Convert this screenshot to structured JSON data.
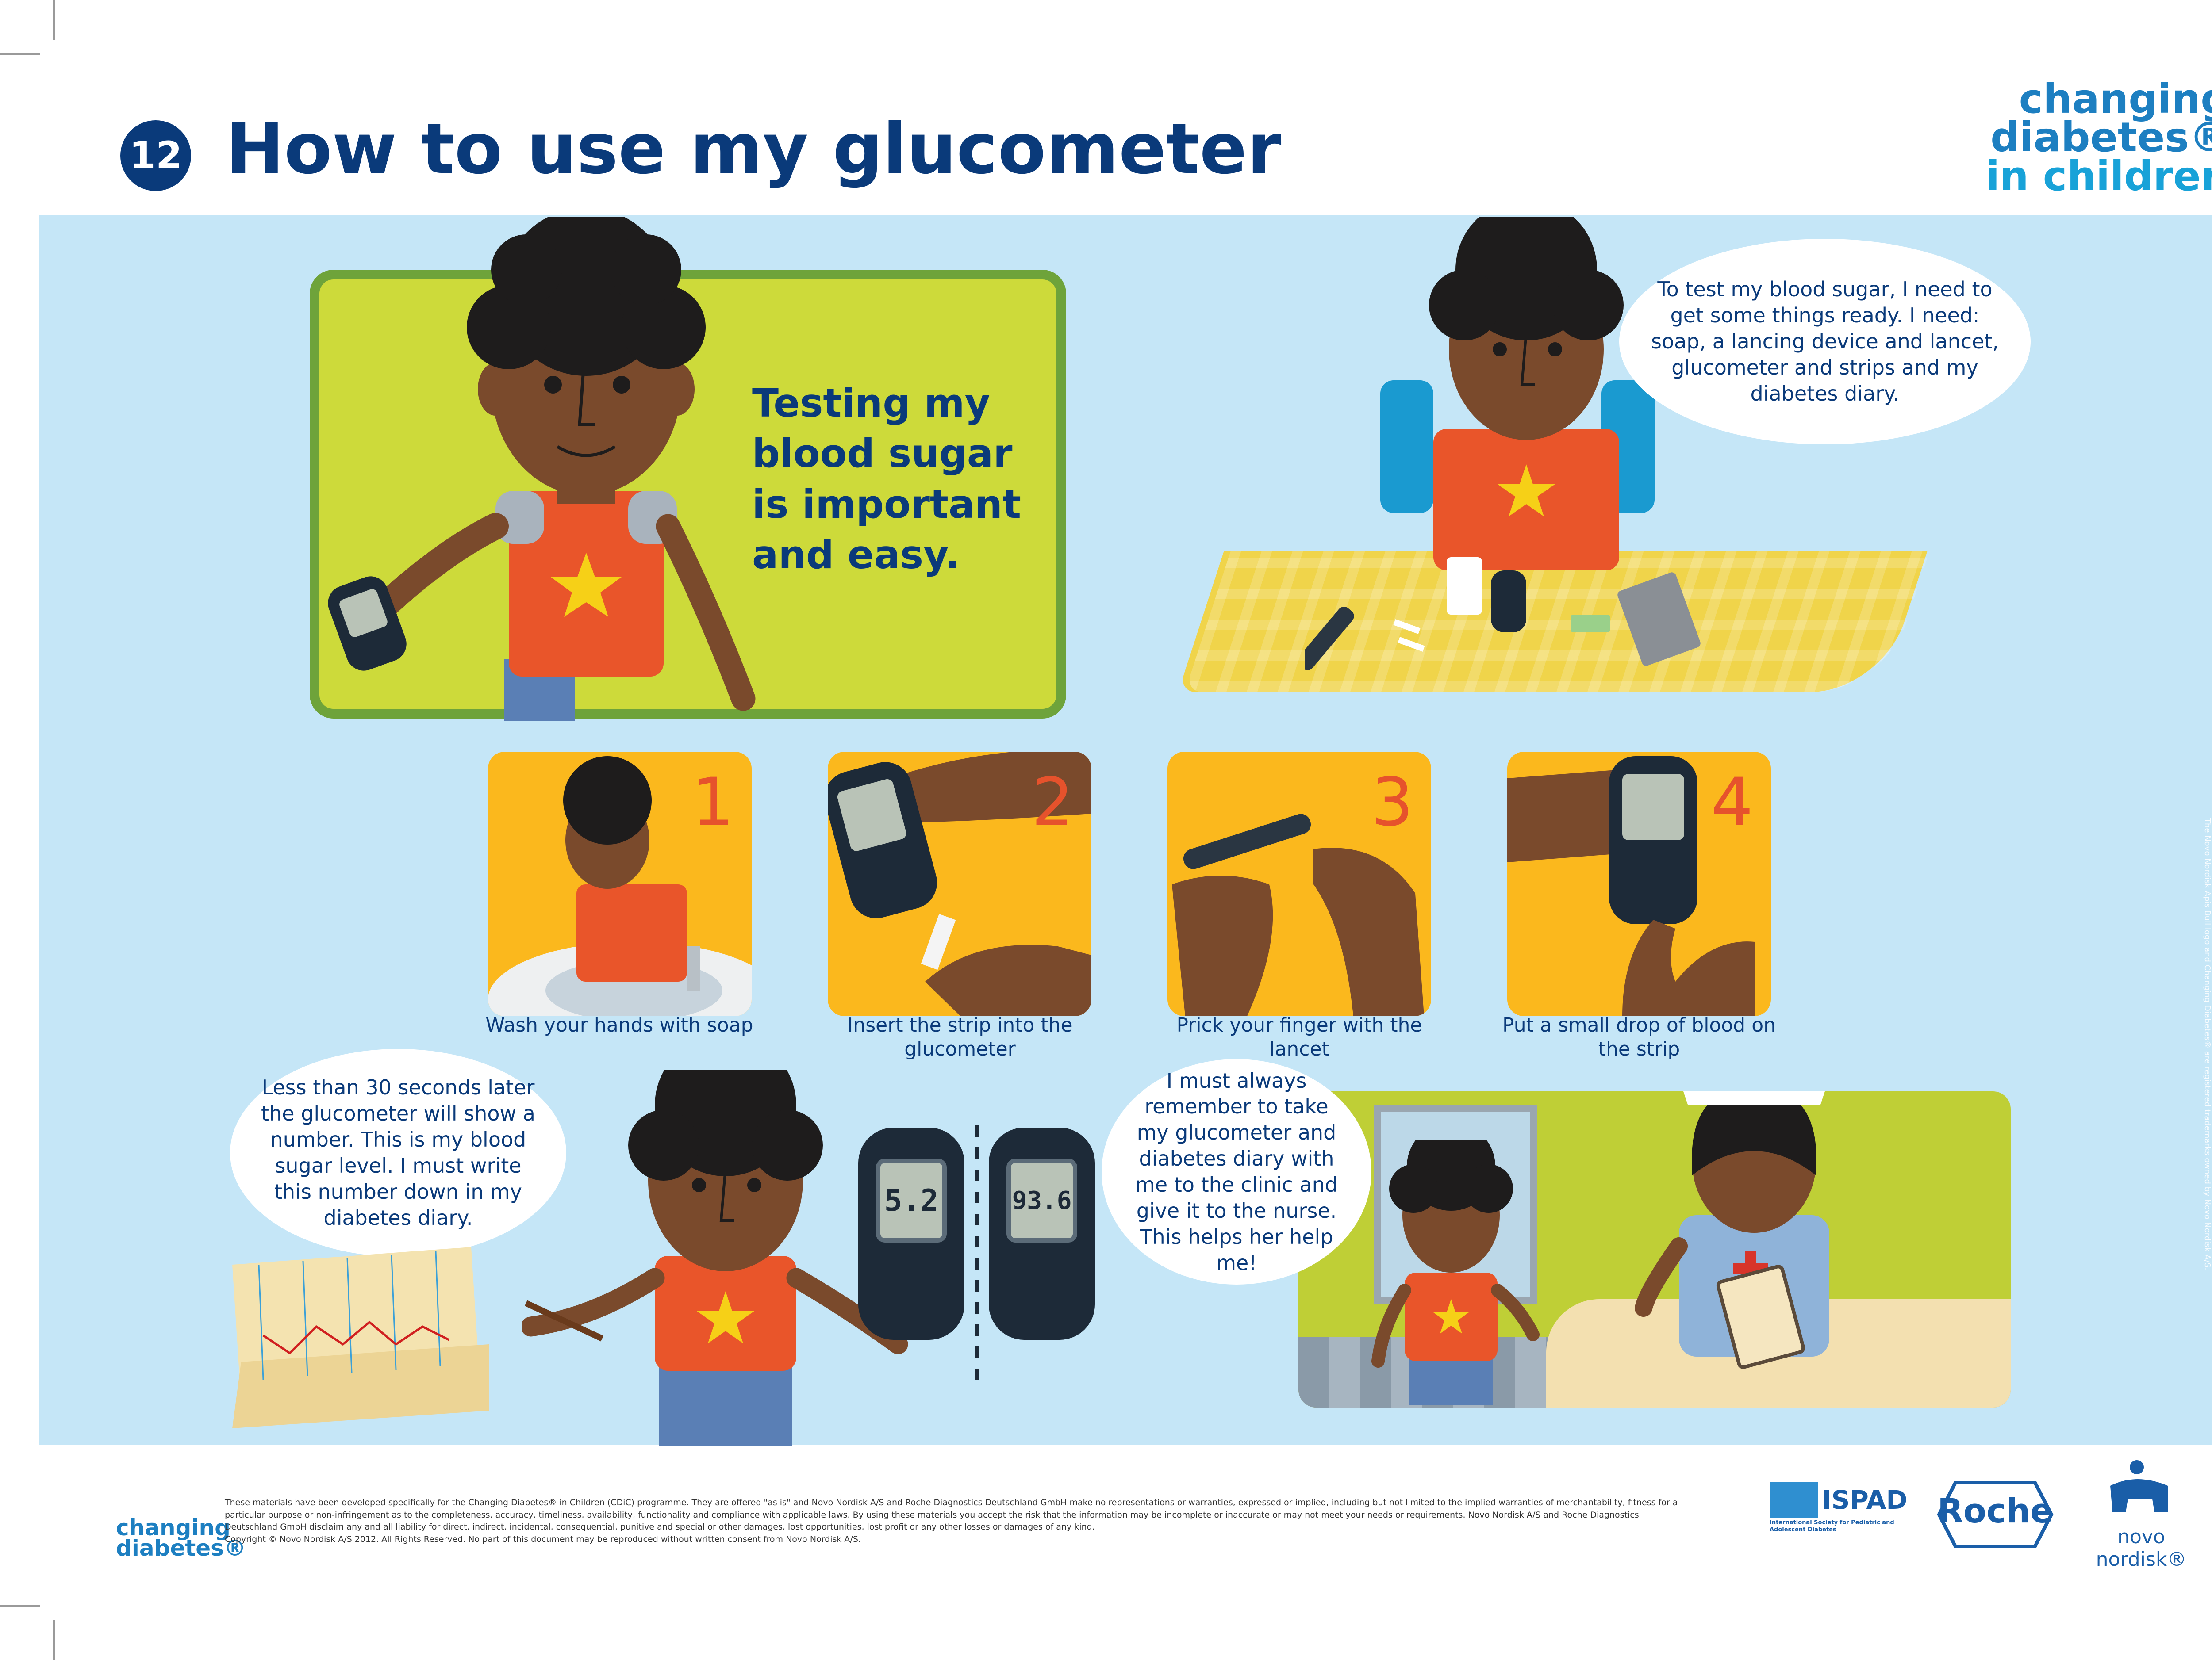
{
  "header": {
    "step_number": "12",
    "title": "How to use my glucometer",
    "brand": {
      "line1": "changing",
      "line2": "diabetes®",
      "line3": "in children"
    }
  },
  "intro": {
    "headline": "Testing my blood sugar is important and easy."
  },
  "bubbles": {
    "prepare": "To test my blood sugar, I need to get some things ready. I need: soap, a lancing device and lancet, glucometer and strips and my diabetes diary.",
    "result": "Less than 30 seconds later the glucometer will show a number. This is my blood sugar level. I must write this number down in my diabetes diary.",
    "clinic": "I must always remember to take my glucometer and diabetes diary with me to the clinic and give it to the nurse. This helps her help me!"
  },
  "steps": [
    {
      "number": "1",
      "caption": "Wash your hands with soap"
    },
    {
      "number": "2",
      "caption": "Insert the strip into the glucometer"
    },
    {
      "number": "3",
      "caption": "Prick your finger with the lancet"
    },
    {
      "number": "4",
      "caption": "Put a small drop of blood on the strip"
    }
  ],
  "meter_readings": [
    "5.2",
    "93.6"
  ],
  "side_note": "The Novo Nordisk Apis Bull logo and Changing Diabetes® are registered trademarks owned by Novo Nordisk A/S.",
  "footer": {
    "brand_line1": "changing",
    "brand_line2": "diabetes®",
    "disclaimer": "These materials have been developed specifically for the Changing Diabetes® in Children (CDiC) programme. They are offered \"as is\" and Novo Nordisk A/S and Roche Diagnostics Deutschland GmbH make no representations or warranties, expressed or implied, including but not limited to the implied warranties of merchantability, fitness for a particular purpose or non-infringement as to the completeness, accuracy, timeliness, availability, functionality and compliance with applicable laws. By using these materials you accept the risk that the information may be incomplete or inaccurate or may not meet your needs or requirements. Novo Nordisk A/S and Roche Diagnostics Deutschland GmbH disclaim any and all liability for direct, indirect, incidental, consequential, punitive and special or other damages, lost opportunities, lost profit or any other losses or damages of any kind.",
    "copyright": "Copyright © Novo Nordisk A/S 2012. All Rights Reserved. No part of this document may be reproduced without written consent from Novo Nordisk A/S.",
    "ispad_name": "ISPAD",
    "ispad_full": "International Society for Pediatric and Adolescent Diabetes",
    "roche": "Roche",
    "novo": "novo nordisk®"
  }
}
